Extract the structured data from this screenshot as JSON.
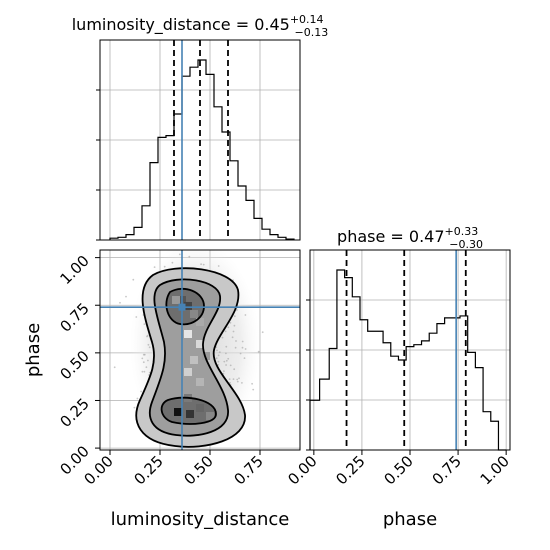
{
  "chart_data": [
    {
      "type": "histogram",
      "panel": "luminosity_distance marginal",
      "title": {
        "param": "luminosity_distance",
        "median": "0.45",
        "plus": "+0.14",
        "minus": "−0.13"
      },
      "xlim": [
        -0.05,
        0.95
      ],
      "bins_edges": [
        0.0,
        0.04,
        0.08,
        0.12,
        0.16,
        0.2,
        0.24,
        0.28,
        0.32,
        0.36,
        0.4,
        0.44,
        0.48,
        0.52,
        0.56,
        0.6,
        0.64,
        0.68,
        0.72,
        0.76,
        0.8,
        0.84,
        0.88,
        0.92
      ],
      "counts": [
        0.01,
        0.015,
        0.03,
        0.07,
        0.19,
        0.43,
        0.57,
        0.58,
        0.7,
        0.91,
        0.96,
        1.0,
        0.92,
        0.74,
        0.6,
        0.44,
        0.3,
        0.22,
        0.12,
        0.06,
        0.03,
        0.015,
        0.005
      ],
      "quantiles": [
        0.32,
        0.45,
        0.59
      ],
      "truth": 0.36
    },
    {
      "type": "histogram",
      "panel": "phase marginal",
      "title": {
        "param": "phase",
        "median": "0.47",
        "plus": "+0.33",
        "minus": "−0.30"
      },
      "xlim": [
        -0.02,
        1.02
      ],
      "xticks": [
        "0.00",
        "0.25",
        "0.50",
        "0.75",
        "1.00"
      ],
      "xlabel": "phase",
      "bins_edges": [
        -0.02,
        0.03,
        0.08,
        0.12,
        0.16,
        0.2,
        0.24,
        0.28,
        0.32,
        0.36,
        0.4,
        0.44,
        0.48,
        0.52,
        0.56,
        0.6,
        0.64,
        0.68,
        0.72,
        0.76,
        0.8,
        0.84,
        0.88,
        0.92,
        0.96,
        1.0
      ],
      "counts": [
        0.26,
        0.37,
        0.53,
        0.94,
        0.9,
        0.8,
        0.68,
        0.62,
        0.62,
        0.56,
        0.49,
        0.47,
        0.54,
        0.55,
        0.57,
        0.61,
        0.66,
        0.69,
        0.69,
        0.7,
        0.51,
        0.43,
        0.2,
        0.15,
        0.0
      ],
      "quantiles": [
        0.17,
        0.47,
        0.79
      ],
      "truth": 0.74
    },
    {
      "type": "contour",
      "panel": "luminosity_distance vs phase 2D",
      "xlabel": "luminosity_distance",
      "ylabel": "phase",
      "xlim": [
        -0.05,
        0.95
      ],
      "ylim": [
        -0.01,
        1.04
      ],
      "xticks": [
        "0.00",
        "0.25",
        "0.50",
        "0.75"
      ],
      "yticks": [
        "0.00",
        "0.25",
        "0.50",
        "0.75",
        "1.00"
      ],
      "truth": {
        "x": 0.36,
        "y": 0.74
      },
      "grid": true
    }
  ]
}
